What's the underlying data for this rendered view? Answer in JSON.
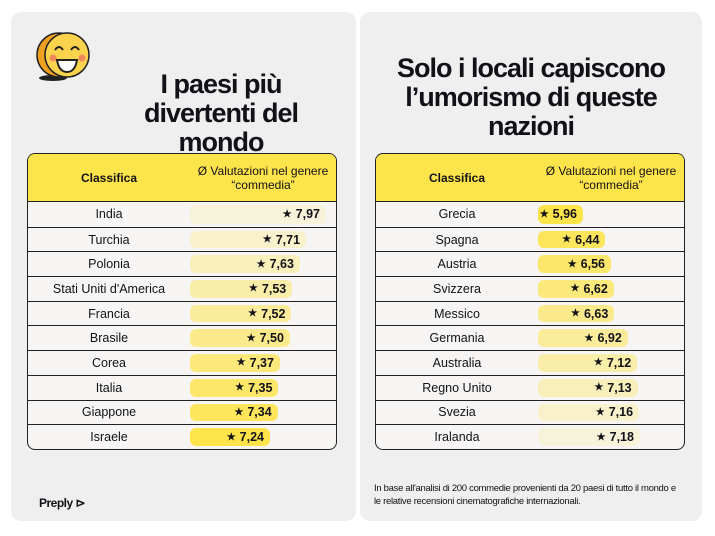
{
  "left": {
    "title": "I paesi più divertenti del mondo",
    "header": {
      "rank": "Classifica",
      "rating": "Ø Valutazioni nel genere “commedia”"
    },
    "rows": [
      {
        "country": "India",
        "rating": "7,97",
        "value": 7.97
      },
      {
        "country": "Turchia",
        "rating": "7,71",
        "value": 7.71
      },
      {
        "country": "Polonia",
        "rating": "7,63",
        "value": 7.63
      },
      {
        "country": "Stati Uniti d'America",
        "rating": "7,53",
        "value": 7.53
      },
      {
        "country": "Francia",
        "rating": "7,52",
        "value": 7.52
      },
      {
        "country": "Brasile",
        "rating": "7,50",
        "value": 7.5
      },
      {
        "country": "Corea",
        "rating": "7,37",
        "value": 7.37
      },
      {
        "country": "Italia",
        "rating": "7,35",
        "value": 7.35
      },
      {
        "country": "Giappone",
        "rating": "7,34",
        "value": 7.34
      },
      {
        "country": "Israele",
        "rating": "7,24",
        "value": 7.24
      }
    ],
    "logo": "Preply"
  },
  "right": {
    "title": "Solo i locali capiscono l’umorismo di queste nazioni",
    "header": {
      "rank": "Classifica",
      "rating": "Ø Valutazioni nel genere “commedia”"
    },
    "rows": [
      {
        "country": "Grecia",
        "rating": "5,96",
        "value": 5.96
      },
      {
        "country": "Spagna",
        "rating": "6,44",
        "value": 6.44
      },
      {
        "country": "Austria",
        "rating": "6,56",
        "value": 6.56
      },
      {
        "country": "Svizzera",
        "rating": "6,62",
        "value": 6.62
      },
      {
        "country": "Messico",
        "rating": "6,63",
        "value": 6.63
      },
      {
        "country": "Germania",
        "rating": "6,92",
        "value": 6.92
      },
      {
        "country": "Australia",
        "rating": "7,12",
        "value": 7.12
      },
      {
        "country": "Regno Unito",
        "rating": "7,13",
        "value": 7.13
      },
      {
        "country": "Svezia",
        "rating": "7,16",
        "value": 7.16
      },
      {
        "country": "Iralanda",
        "rating": "7,18",
        "value": 7.18
      }
    ],
    "note": "In base all'analisi di 200 commedie provenienti da 20 paesi di tutto il mondo e le relative recensioni cinematografiche internazionali."
  },
  "colors": {
    "accent": "#fde44b",
    "panel": "#efefef"
  },
  "icons": {
    "star": "★",
    "emoji": "grinning-face"
  }
}
